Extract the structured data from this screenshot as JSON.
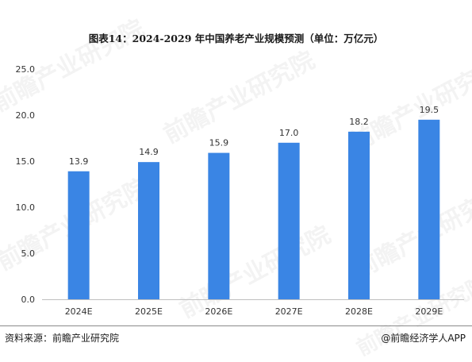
{
  "chart_data": {
    "type": "bar",
    "title": "图表14：2024-2029 年中国养老产业规模预测（单位：万亿元）",
    "categories": [
      "2024E",
      "2025E",
      "2026E",
      "2027E",
      "2028E",
      "2029E"
    ],
    "values": [
      13.9,
      14.9,
      15.9,
      17.0,
      18.2,
      19.5
    ],
    "value_labels": [
      "13.9",
      "14.9",
      "15.9",
      "17.0",
      "18.2",
      "19.5"
    ],
    "ylim": [
      0,
      25
    ],
    "yticks": [
      0,
      5,
      10,
      15,
      20,
      25
    ],
    "ytick_labels": [
      "0.0",
      "5.0",
      "10.0",
      "15.0",
      "20.0",
      "25.0"
    ],
    "xlabel": "",
    "ylabel": "",
    "grid": false,
    "bar_color": "#3a85e4"
  },
  "footer": {
    "source": "资料来源：前瞻产业研究院",
    "credit": "@前瞻经济学人APP"
  },
  "watermark_text": "前瞻产业研究院"
}
